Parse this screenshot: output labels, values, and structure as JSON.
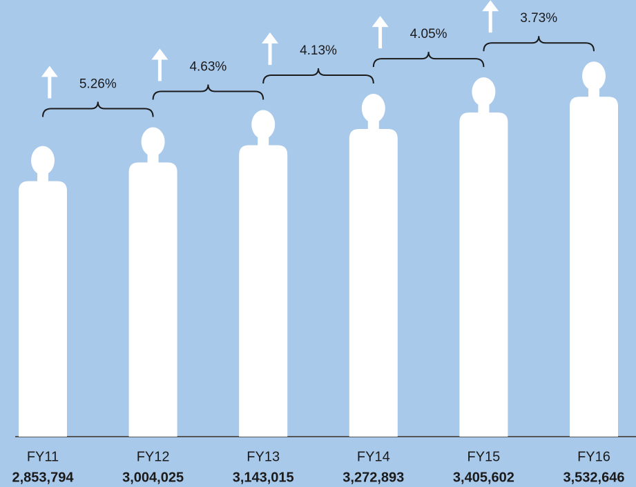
{
  "chart_data": {
    "type": "pictograph",
    "categories": [
      "FY11",
      "FY12",
      "FY13",
      "FY14",
      "FY15",
      "FY16"
    ],
    "values": [
      2853794,
      3004025,
      3143015,
      3272893,
      3405602,
      3532646
    ],
    "value_labels": [
      "2,853,794",
      "3,004,025",
      "3,143,015",
      "3,272,893",
      "3,405,602",
      "3,532,646"
    ],
    "annotations": [
      "5.26%",
      "4.63%",
      "4.13%",
      "4.05%",
      "3.73%"
    ],
    "color": "#ffffff",
    "ylim": [
      800000,
      3800000
    ]
  }
}
